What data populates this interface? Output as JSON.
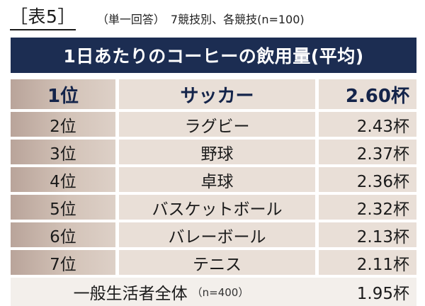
{
  "caption": {
    "tag": "［表5］",
    "subtitle": "（単一回答）　7競技別、各競技(n=100)"
  },
  "table": {
    "title": "1日あたりのコーヒーの飲用量(平均)",
    "rows": [
      {
        "rank": "1位",
        "sport": "サッカー",
        "value": "2.60杯"
      },
      {
        "rank": "2位",
        "sport": "ラグビー",
        "value": "2.43杯"
      },
      {
        "rank": "3位",
        "sport": "野球",
        "value": "2.37杯"
      },
      {
        "rank": "4位",
        "sport": "卓球",
        "value": "2.36杯"
      },
      {
        "rank": "5位",
        "sport": "バスケットボール",
        "value": "2.32杯"
      },
      {
        "rank": "6位",
        "sport": "バレーボール",
        "value": "2.13杯"
      },
      {
        "rank": "7位",
        "sport": "テニス",
        "value": "2.11杯"
      }
    ],
    "total": {
      "label": "一般生活者全体",
      "sample": "（n=400）",
      "value": "1.95杯"
    }
  },
  "colors": {
    "title_bar": "#1c2d52",
    "rank_cell": "#d3c3b8",
    "data_cell": "#e9dfd7"
  }
}
